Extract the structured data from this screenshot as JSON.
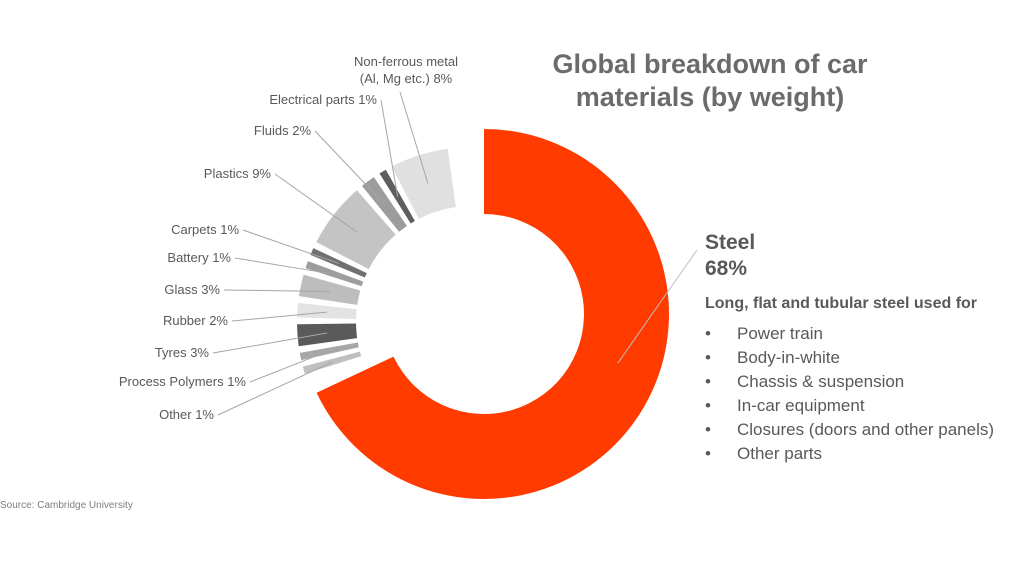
{
  "chart_data": {
    "type": "pie",
    "variant": "exploded-donut",
    "title_lines": [
      "Global breakdown of car",
      "materials (by weight)"
    ],
    "slices": [
      {
        "label": "Steel",
        "value": 68,
        "color": "#ff3b00"
      },
      {
        "label": "Other",
        "value": 1,
        "color": "#bfbfbf"
      },
      {
        "label": "Process Polymers",
        "value": 1,
        "color": "#a6a6a6"
      },
      {
        "label": "Tyres",
        "value": 3,
        "color": "#5a5a5a"
      },
      {
        "label": "Rubber",
        "value": 2,
        "color": "#e3e3e3"
      },
      {
        "label": "Glass",
        "value": 3,
        "color": "#bdbdbd"
      },
      {
        "label": "Battery",
        "value": 1,
        "color": "#9d9d9d"
      },
      {
        "label": "Carpets",
        "value": 1,
        "color": "#707070"
      },
      {
        "label": "Plastics",
        "value": 9,
        "color": "#c4c4c4"
      },
      {
        "label": "Fluids",
        "value": 2,
        "color": "#9c9c9c"
      },
      {
        "label": "Electrical parts",
        "value": 1,
        "color": "#5e5e5e"
      },
      {
        "label": "Non-ferrous metal (Al, Mg etc.)",
        "value": 8,
        "color": "#e0e0e0"
      }
    ],
    "labels": {
      "other": "Other 1%",
      "process_polymers": "Process Polymers 1%",
      "tyres": "Tyres 3%",
      "rubber": "Rubber 2%",
      "glass": "Glass 3%",
      "battery": "Battery 1%",
      "carpets": "Carpets 1%",
      "plastics": "Plastics 9%",
      "fluids": "Fluids 2%",
      "electrical": "Electrical parts 1%",
      "nonferrous_line1": "Non-ferrous metal",
      "nonferrous_line2": "(Al, Mg etc.)  8%"
    }
  },
  "steel_callout": {
    "name": "Steel",
    "pct": "68%",
    "description": "Long, flat and tubular steel used for",
    "bullet": "•",
    "items": [
      "Power train",
      "Body-in-white",
      "Chassis & suspension",
      "In-car equipment",
      "Closures (doors and other panels)",
      "Other parts"
    ]
  },
  "source": "Source:  Cambridge  University"
}
